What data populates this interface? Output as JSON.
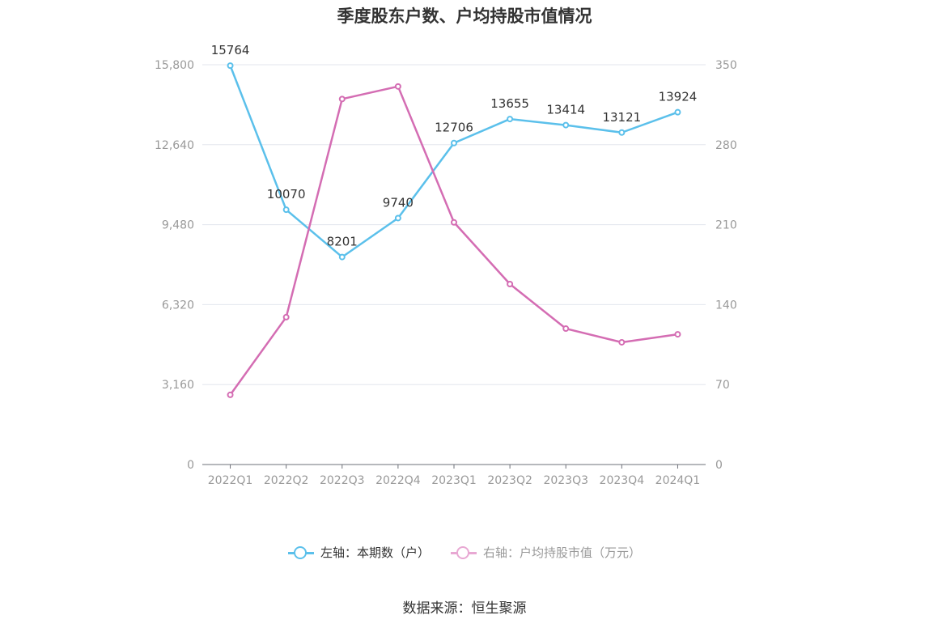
{
  "title": "季度股东户数、户均持股市值情况",
  "source": "数据来源：恒生聚源",
  "colors": {
    "left_series": "#5bc0eb",
    "right_series": "#d46db3",
    "right_series_legend": "#e8a8d3",
    "grid": "#e3e6ee",
    "axis_text": "#999999"
  },
  "chart_data": {
    "type": "line",
    "title": "季度股东户数、户均持股市值情况",
    "categories": [
      "2022Q1",
      "2022Q2",
      "2022Q3",
      "2022Q4",
      "2023Q1",
      "2023Q2",
      "2023Q3",
      "2023Q4",
      "2024Q1"
    ],
    "y_left": {
      "ylim": [
        0,
        15800
      ],
      "ticks": [
        0,
        3160,
        6320,
        9480,
        12640,
        15800
      ],
      "tick_labels": [
        "0",
        "3,160",
        "6,320",
        "9,480",
        "12,640",
        "15,800"
      ]
    },
    "y_right": {
      "ylim": [
        0,
        350
      ],
      "ticks": [
        0,
        70,
        140,
        210,
        280,
        350
      ],
      "tick_labels": [
        "0",
        "70",
        "140",
        "210",
        "280",
        "350"
      ]
    },
    "series": [
      {
        "name": "左轴：本期数（户）",
        "axis": "left",
        "values": [
          15764,
          10070,
          8201,
          9740,
          12706,
          13655,
          13414,
          13121,
          13924
        ],
        "show_labels": true
      },
      {
        "name": "右轴：户均持股市值（万元）",
        "axis": "right",
        "values": [
          61,
          129,
          320,
          331,
          212,
          158,
          119,
          107,
          114
        ],
        "show_labels": false
      }
    ],
    "grid": true,
    "legend_position": "bottom"
  }
}
